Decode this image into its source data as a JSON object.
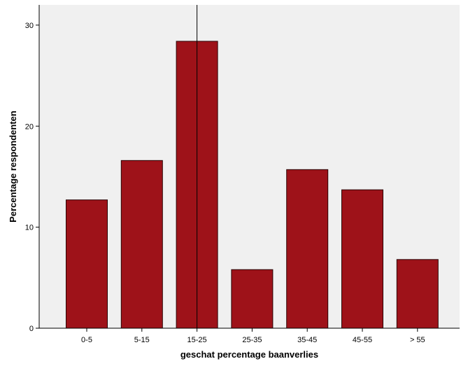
{
  "chart_data": {
    "type": "bar",
    "title": "",
    "xlabel": "geschat percentage baanverlies",
    "ylabel": "Percentage respondenten",
    "categories": [
      "0-5",
      "5-15",
      "15-25",
      "25-35",
      "35-45",
      "45-55",
      "> 55"
    ],
    "values": [
      12.7,
      16.6,
      28.4,
      5.8,
      15.7,
      13.7,
      6.8
    ],
    "ylim": [
      0,
      32
    ],
    "yticks": [
      0,
      10,
      20,
      30
    ],
    "grid": false,
    "legend": "none",
    "reference_line": {
      "axis": "x",
      "category": "15-25"
    },
    "colors": {
      "bar_fill": "#9e1219",
      "bar_stroke": "#2b0506",
      "plot_background": "#f0f0f0",
      "axis": "#000000"
    }
  }
}
